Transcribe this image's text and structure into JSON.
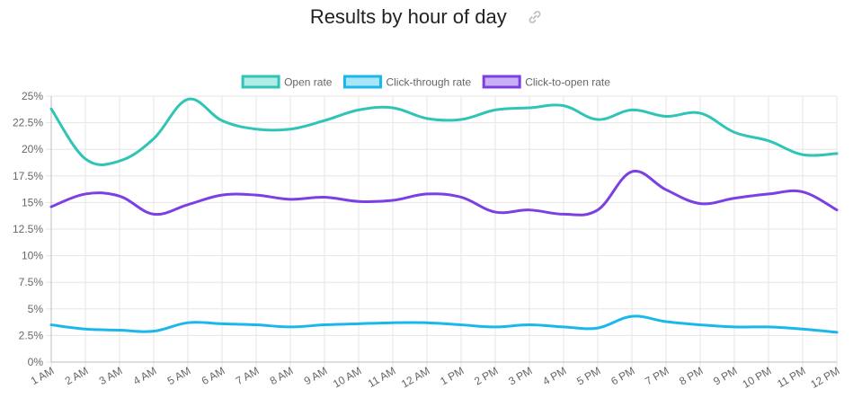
{
  "header": {
    "title": "Results by hour of day",
    "link_icon": "link-icon"
  },
  "chart_data": {
    "type": "line",
    "categories": [
      "1 AM",
      "2 AM",
      "3 AM",
      "4 AM",
      "5 AM",
      "6 AM",
      "7 AM",
      "8 AM",
      "9 AM",
      "10 AM",
      "11 AM",
      "12 AM",
      "1 PM",
      "2 PM",
      "3 PM",
      "4 PM",
      "5 PM",
      "6 PM",
      "7 PM",
      "8 PM",
      "9 PM",
      "10 PM",
      "11 PM",
      "12 PM"
    ],
    "ylim": [
      0,
      25
    ],
    "yticks": [
      0,
      2.5,
      5,
      7.5,
      10,
      12.5,
      15,
      17.5,
      20,
      22.5,
      25
    ],
    "ytick_labels": [
      "0%",
      "2.5%",
      "5%",
      "7.5%",
      "10%",
      "12.5%",
      "15%",
      "17.5%",
      "20%",
      "22.5%",
      "25%"
    ],
    "grid": true,
    "legend_position": "top",
    "series": [
      {
        "name": "Open rate",
        "color": "#2ec4b6",
        "fill": "#b2ece6",
        "values": [
          23.8,
          19.1,
          18.9,
          21.0,
          24.7,
          22.7,
          21.9,
          21.9,
          22.7,
          23.7,
          23.9,
          22.9,
          22.8,
          23.7,
          23.9,
          24.1,
          22.8,
          23.7,
          23.1,
          23.4,
          21.6,
          20.8,
          19.5,
          19.6
        ]
      },
      {
        "name": "Click-through rate",
        "color": "#1ab8ea",
        "fill": "#a8e6f8",
        "values": [
          3.5,
          3.1,
          3.0,
          2.9,
          3.7,
          3.6,
          3.5,
          3.3,
          3.5,
          3.6,
          3.7,
          3.7,
          3.5,
          3.3,
          3.5,
          3.3,
          3.2,
          4.3,
          3.8,
          3.5,
          3.3,
          3.3,
          3.1,
          2.8
        ]
      },
      {
        "name": "Click-to-open rate",
        "color": "#7b3fe4",
        "fill": "#c8b0f4",
        "values": [
          14.6,
          15.8,
          15.6,
          13.9,
          14.8,
          15.7,
          15.7,
          15.3,
          15.5,
          15.1,
          15.2,
          15.8,
          15.5,
          14.1,
          14.3,
          13.9,
          14.3,
          17.9,
          16.2,
          14.9,
          15.4,
          15.8,
          16.0,
          14.3
        ]
      }
    ]
  }
}
